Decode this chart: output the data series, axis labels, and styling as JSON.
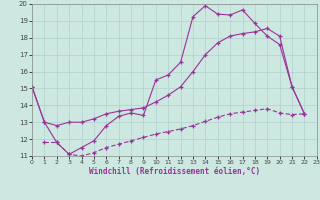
{
  "xlabel": "Windchill (Refroidissement éolien,°C)",
  "bg_color": "#cce8e0",
  "line_color": "#993399",
  "xlim": [
    0,
    23
  ],
  "ylim": [
    11,
    20
  ],
  "xticks": [
    0,
    1,
    2,
    3,
    4,
    5,
    6,
    7,
    8,
    9,
    10,
    11,
    12,
    13,
    14,
    15,
    16,
    17,
    18,
    19,
    20,
    21,
    22,
    23
  ],
  "yticks": [
    11,
    12,
    13,
    14,
    15,
    16,
    17,
    18,
    19,
    20
  ],
  "c1x": [
    0,
    1,
    2,
    3,
    4,
    5,
    6,
    7,
    8,
    9,
    10,
    11,
    12,
    13,
    14,
    15,
    16,
    17,
    18,
    19,
    20,
    21,
    22
  ],
  "c1y": [
    15.1,
    13.0,
    11.8,
    11.1,
    11.5,
    11.9,
    12.8,
    13.35,
    13.55,
    13.4,
    15.5,
    15.8,
    16.55,
    19.25,
    19.9,
    19.4,
    19.35,
    19.65,
    18.85,
    18.1,
    17.6,
    15.1,
    13.5
  ],
  "c2x": [
    0,
    1,
    2,
    3,
    4,
    5,
    6,
    7,
    8,
    9,
    10,
    11,
    12,
    13,
    14,
    15,
    16,
    17,
    18,
    19,
    20,
    21,
    22
  ],
  "c2y": [
    15.1,
    13.0,
    12.8,
    13.0,
    13.0,
    13.2,
    13.5,
    13.65,
    13.75,
    13.85,
    14.2,
    14.6,
    15.1,
    16.0,
    17.0,
    17.7,
    18.1,
    18.25,
    18.35,
    18.55,
    18.1,
    15.1,
    13.5
  ],
  "c3x": [
    1,
    2,
    3,
    4,
    5,
    6,
    7,
    8,
    9,
    10,
    11,
    12,
    13,
    14,
    15,
    16,
    17,
    18,
    19,
    20,
    21,
    22
  ],
  "c3y": [
    11.8,
    11.8,
    11.1,
    11.0,
    11.2,
    11.5,
    11.7,
    11.9,
    12.1,
    12.3,
    12.45,
    12.6,
    12.8,
    13.05,
    13.3,
    13.5,
    13.6,
    13.7,
    13.8,
    13.55,
    13.45,
    13.5
  ]
}
